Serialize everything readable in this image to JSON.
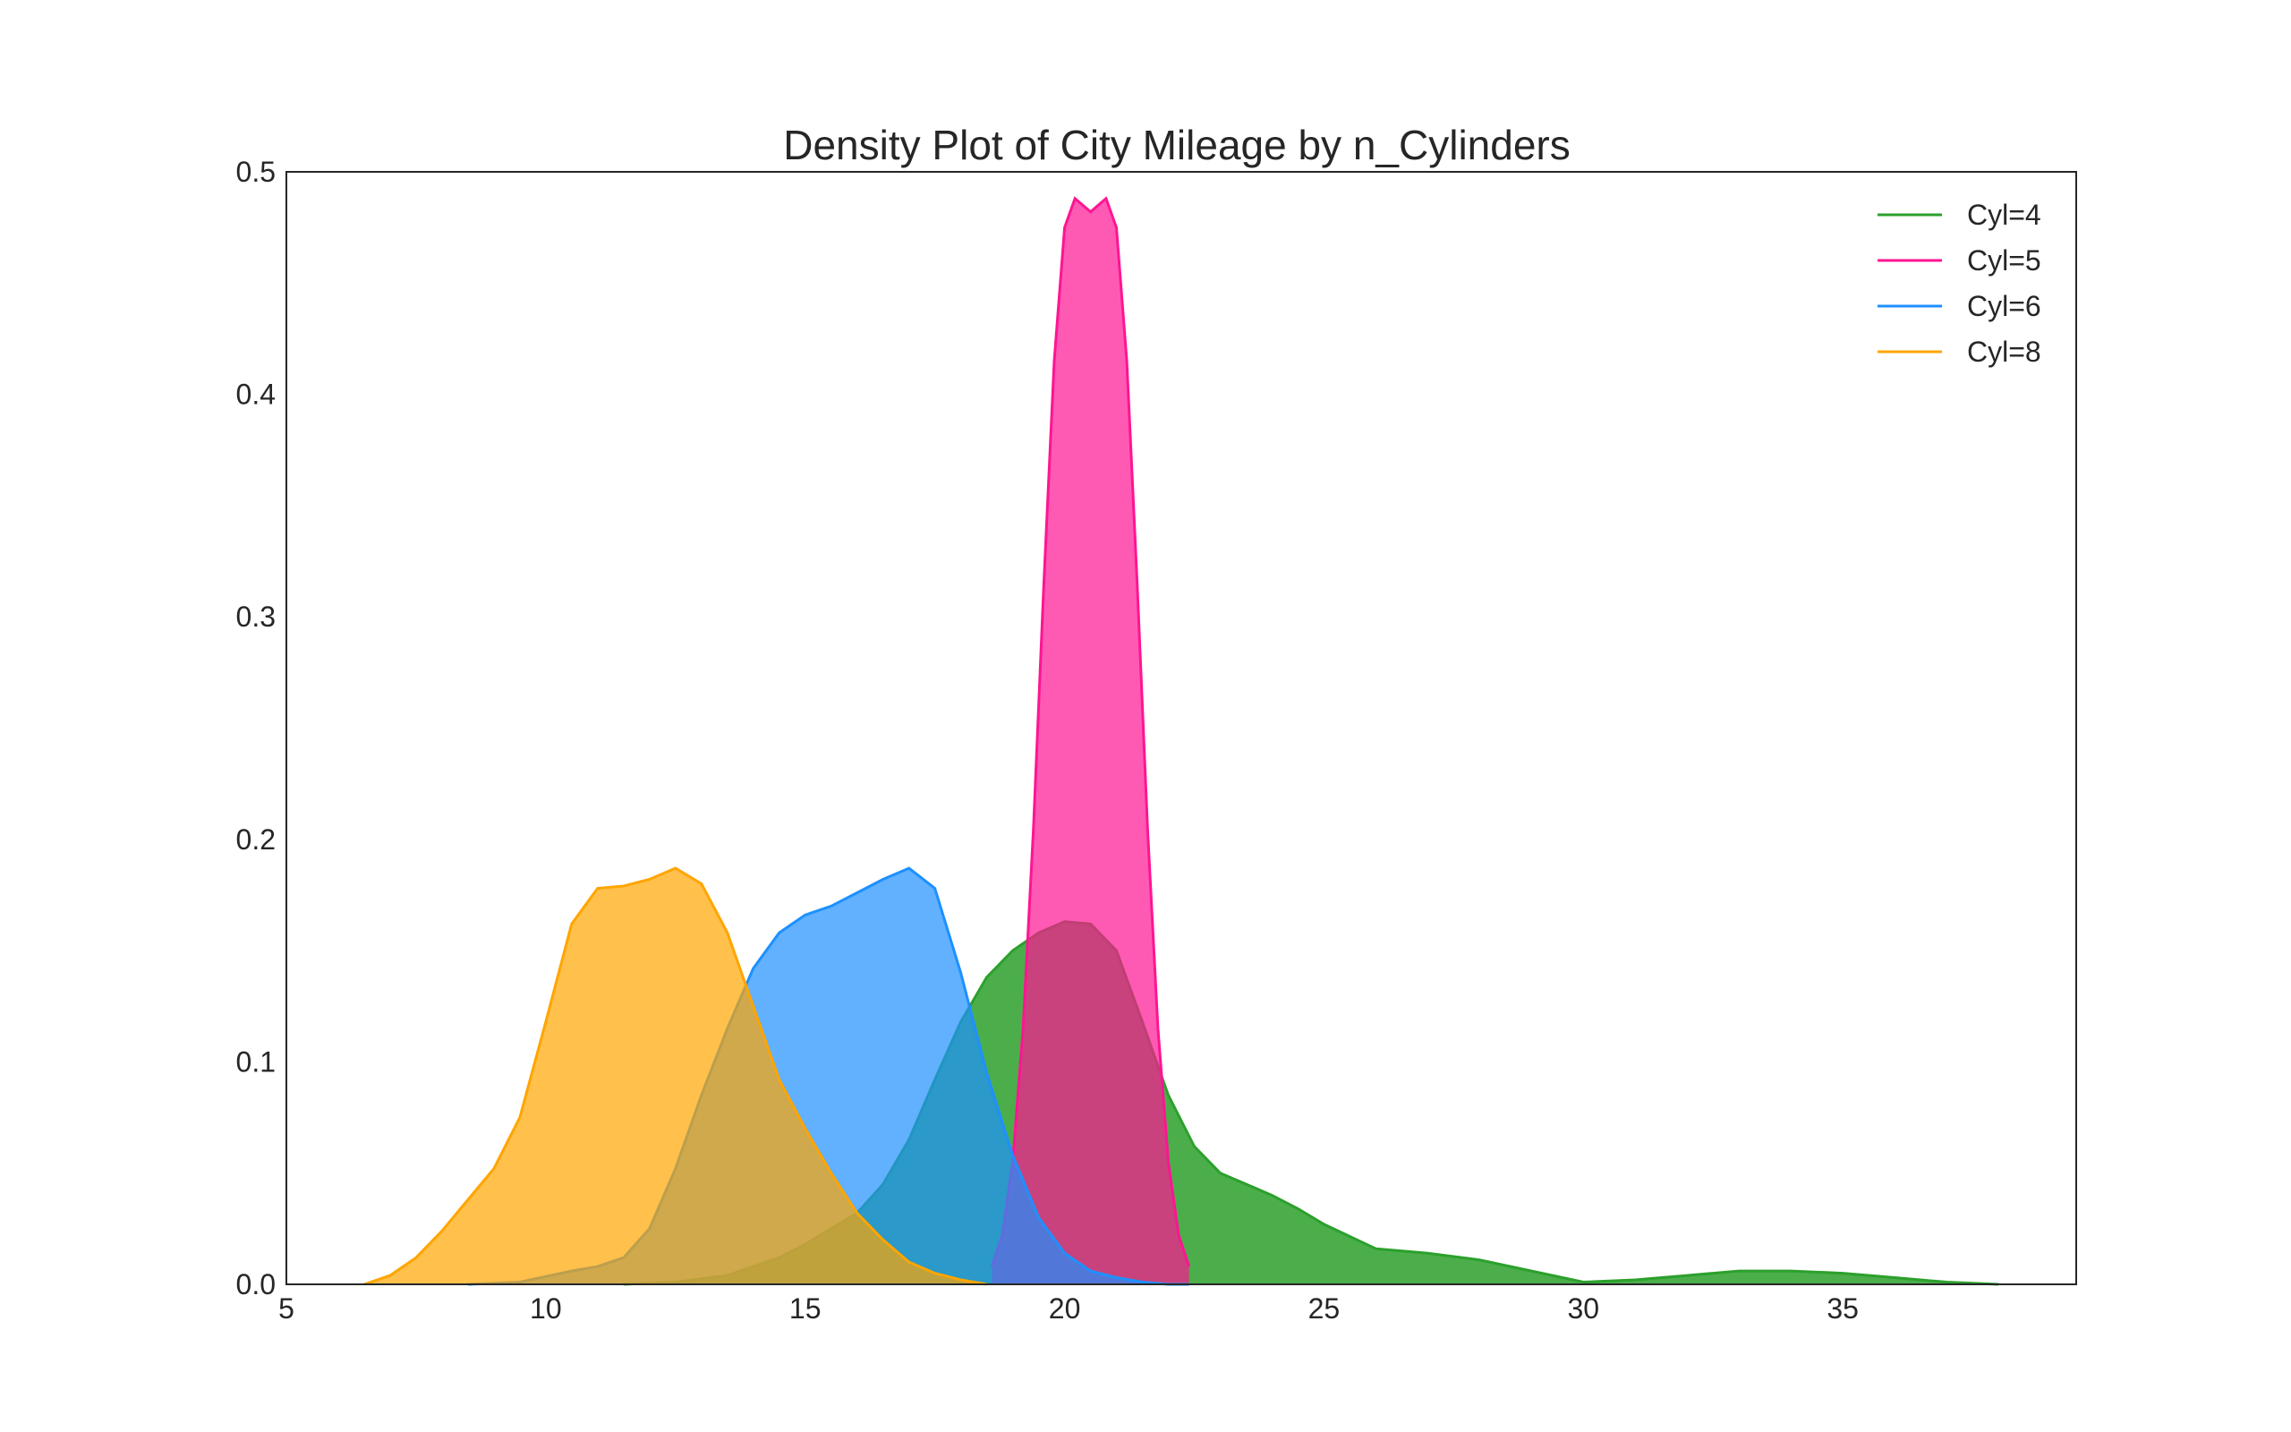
{
  "chart_data": {
    "type": "area",
    "title": "Density Plot of City Mileage by n_Cylinders",
    "xlabel": "",
    "ylabel": "",
    "xlim": [
      5,
      39.5
    ],
    "ylim": [
      0,
      0.5
    ],
    "xticks": [
      "5",
      "10",
      "15",
      "20",
      "25",
      "30",
      "35"
    ],
    "yticks": [
      "0.0",
      "0.1",
      "0.2",
      "0.3",
      "0.4",
      "0.5"
    ],
    "grid": false,
    "legend": "top-right",
    "series": [
      {
        "name": "Cyl=4",
        "color": "#2ca02c",
        "fill_opacity": 0.85,
        "x": [
          11.5,
          12.5,
          13.5,
          14.5,
          15,
          15.5,
          16,
          16.5,
          17,
          17.5,
          18,
          18.5,
          19,
          19.5,
          20,
          20.5,
          21,
          21.5,
          22,
          22.5,
          23,
          23.5,
          24,
          24.5,
          25,
          26,
          27,
          28,
          29,
          30,
          31,
          32,
          33,
          34,
          35,
          36,
          37,
          38
        ],
        "y": [
          0.0,
          0.001,
          0.004,
          0.012,
          0.018,
          0.025,
          0.032,
          0.045,
          0.065,
          0.092,
          0.118,
          0.138,
          0.15,
          0.158,
          0.163,
          0.162,
          0.15,
          0.118,
          0.085,
          0.062,
          0.05,
          0.045,
          0.04,
          0.034,
          0.027,
          0.016,
          0.014,
          0.011,
          0.006,
          0.001,
          0.002,
          0.004,
          0.006,
          0.006,
          0.005,
          0.003,
          0.001,
          0.0
        ]
      },
      {
        "name": "Cyl=5",
        "color": "#ff1493",
        "fill_opacity": 0.7,
        "x": [
          18.6,
          18.8,
          19.0,
          19.2,
          19.4,
          19.6,
          19.8,
          20.0,
          20.2,
          20.4,
          20.5,
          20.6,
          20.8,
          21.0,
          21.2,
          21.4,
          21.6,
          21.8,
          22.0,
          22.2,
          22.4
        ],
        "y": [
          0.008,
          0.022,
          0.055,
          0.115,
          0.205,
          0.315,
          0.415,
          0.475,
          0.488,
          0.484,
          0.482,
          0.484,
          0.488,
          0.475,
          0.415,
          0.315,
          0.205,
          0.115,
          0.055,
          0.022,
          0.008
        ]
      },
      {
        "name": "Cyl=6",
        "color": "#1e90ff",
        "fill_opacity": 0.7,
        "x": [
          8.5,
          9.5,
          10.5,
          11,
          11.5,
          12,
          12.5,
          13,
          13.5,
          14,
          14.5,
          15,
          15.5,
          16,
          16.5,
          17,
          17.5,
          18,
          18.5,
          19,
          19.5,
          20,
          20.5,
          21,
          21.5,
          22,
          22.4
        ],
        "y": [
          0.0,
          0.001,
          0.006,
          0.008,
          0.012,
          0.025,
          0.052,
          0.085,
          0.115,
          0.142,
          0.158,
          0.166,
          0.17,
          0.176,
          0.182,
          0.187,
          0.178,
          0.14,
          0.095,
          0.058,
          0.03,
          0.014,
          0.006,
          0.003,
          0.001,
          0.0,
          0.0
        ]
      },
      {
        "name": "Cyl=8",
        "color": "#ffa500",
        "fill_opacity": 0.7,
        "x": [
          6.5,
          7,
          7.5,
          8,
          8.5,
          9,
          9.5,
          10,
          10.5,
          11,
          11.5,
          12,
          12.5,
          13,
          13.5,
          14,
          14.5,
          15,
          15.5,
          16,
          16.5,
          17,
          17.5,
          18,
          18.5
        ],
        "y": [
          0.0,
          0.004,
          0.012,
          0.024,
          0.038,
          0.052,
          0.075,
          0.118,
          0.162,
          0.178,
          0.179,
          0.182,
          0.187,
          0.18,
          0.158,
          0.125,
          0.092,
          0.07,
          0.05,
          0.032,
          0.02,
          0.01,
          0.005,
          0.002,
          0.0
        ]
      }
    ]
  }
}
